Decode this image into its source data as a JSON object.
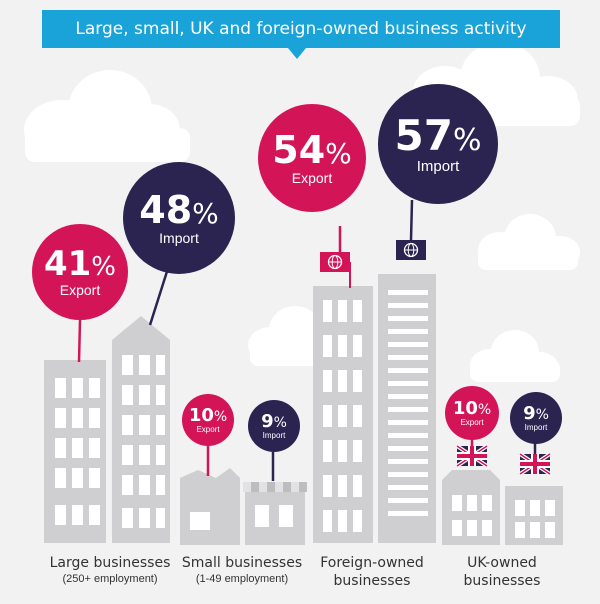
{
  "title": "Large, small, UK and foreign-owned business activity",
  "bubbles": {
    "large_export": {
      "value": "41",
      "unit": "%",
      "label": "Export"
    },
    "large_import": {
      "value": "48",
      "unit": "%",
      "label": "Import"
    },
    "small_export": {
      "value": "10",
      "unit": "%",
      "label": "Export"
    },
    "small_import": {
      "value": "9",
      "unit": "%",
      "label": "Import"
    },
    "foreign_export": {
      "value": "54",
      "unit": "%",
      "label": "Export"
    },
    "foreign_import": {
      "value": "57",
      "unit": "%",
      "label": "Import"
    },
    "uk_export": {
      "value": "10",
      "unit": "%",
      "label": "Export"
    },
    "uk_import": {
      "value": "9",
      "unit": "%",
      "label": "Import"
    }
  },
  "categories": {
    "large": {
      "name": "Large businesses",
      "sub": "(250+ employment)"
    },
    "small": {
      "name": "Small businesses",
      "sub": "(1-49 employment)"
    },
    "foreign": {
      "line1": "Foreign-owned",
      "line2": "businesses"
    },
    "uk": {
      "line1": "UK-owned",
      "line2": "businesses"
    }
  },
  "icons": {
    "foreign_export_flag": "globe-flag-icon",
    "foreign_import_flag": "globe-flag-icon",
    "uk_export_flag": "union-jack-icon",
    "uk_import_flag": "union-jack-icon"
  },
  "colors": {
    "banner": "#1aa3d8",
    "export": "#d31558",
    "import": "#2b2350",
    "buildings": "#cfcfd1",
    "clouds": "#ffffff"
  }
}
